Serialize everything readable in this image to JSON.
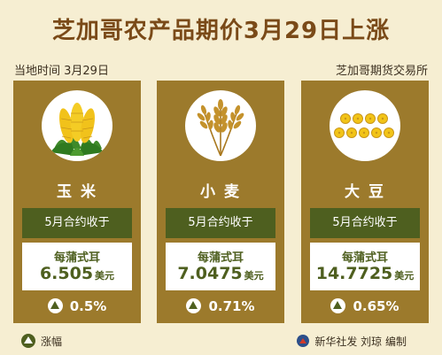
{
  "title": "芝加哥农产品期价3月29日上涨",
  "subtitle_left": "当地时间  3月29日",
  "subtitle_right": "芝加哥期货交易所",
  "cards": [
    {
      "name": "玉 米",
      "icon": "corn-icon",
      "contract": "5月合约收于",
      "unit": "每蒲式耳",
      "price": "6.505",
      "currency": "美元",
      "change": "0.5%"
    },
    {
      "name": "小 麦",
      "icon": "wheat-icon",
      "contract": "5月合约收于",
      "unit": "每蒲式耳",
      "price": "7.0475",
      "currency": "美元",
      "change": "0.71%"
    },
    {
      "name": "大 豆",
      "icon": "soybean-icon",
      "contract": "5月合约收于",
      "unit": "每蒲式耳",
      "price": "14.7725",
      "currency": "美元",
      "change": "0.65%"
    }
  ],
  "legend": {
    "label": "涨幅",
    "icon": "up-arrow-icon"
  },
  "credit": "新华社发 刘琼 编制",
  "colors": {
    "background": "#f6eed2",
    "panel": "#9c7a2c",
    "dark_green": "#4e5f1f",
    "title": "#7a4a18"
  }
}
